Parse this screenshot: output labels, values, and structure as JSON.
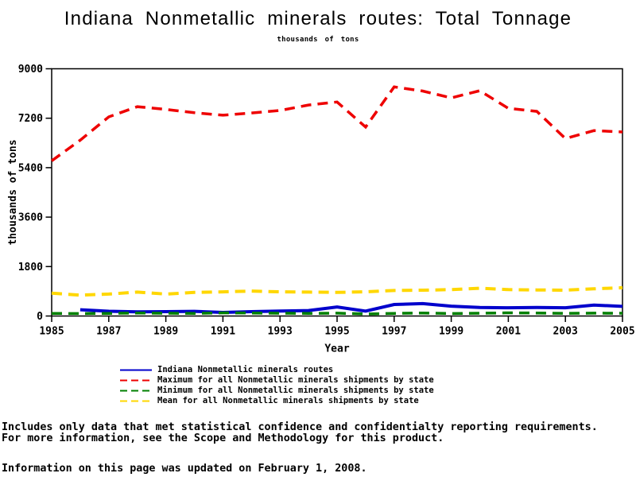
{
  "page": {
    "title": "Indiana Nonmetallic minerals routes: Total Tonnage",
    "subtitle": "thousands of tons",
    "footnote_line1": "Includes only data that met statistical confidence and confidentialty reporting requirements.",
    "footnote_line2": "For more information, see the Scope and Methodology for this product.",
    "updated_note": "Information on this page was updated on February 1, 2008."
  },
  "chart_data": {
    "type": "line",
    "title": "Indiana Nonmetallic minerals routes: Total Tonnage",
    "subtitle": "thousands of tons",
    "xlabel": "Year",
    "ylabel": "thousands of tons",
    "xlim": [
      1985,
      2005
    ],
    "ylim": [
      0,
      9000
    ],
    "x_ticks": [
      1985,
      1987,
      1989,
      1991,
      1993,
      1995,
      1997,
      1999,
      2001,
      2003,
      2005
    ],
    "y_ticks": [
      0,
      1800,
      3600,
      5400,
      7200,
      9000
    ],
    "grid": false,
    "legend_position": "bottom",
    "frame": true,
    "x": [
      1985,
      1986,
      1987,
      1988,
      1989,
      1990,
      1991,
      1992,
      1993,
      1994,
      1995,
      1996,
      1997,
      1998,
      1999,
      2000,
      2001,
      2002,
      2003,
      2004,
      2005
    ],
    "series": [
      {
        "name": "Indiana Nonmetallic minerals routes",
        "color": "#0000CC",
        "style": "solid",
        "width": 4,
        "values": [
          null,
          230,
          175,
          150,
          160,
          170,
          130,
          160,
          180,
          200,
          330,
          180,
          420,
          450,
          360,
          310,
          300,
          310,
          300,
          400,
          350
        ]
      },
      {
        "name": "Maximum for all Nonmetallic minerals shipments by state",
        "color": "#EE0000",
        "style": "dashed",
        "width": 3.5,
        "values": [
          5650,
          6400,
          7250,
          7620,
          7520,
          7400,
          7310,
          7390,
          7480,
          7680,
          7790,
          6880,
          8340,
          8190,
          7940,
          8200,
          7560,
          7450,
          6460,
          6750,
          6700
        ]
      },
      {
        "name": "Minimum for all Nonmetallic minerals shipments by state",
        "color": "#008000",
        "style": "dashed",
        "width": 3.5,
        "values": [
          95,
          90,
          95,
          110,
          100,
          95,
          115,
          110,
          100,
          95,
          105,
          75,
          95,
          110,
          90,
          100,
          115,
          110,
          95,
          105,
          100
        ]
      },
      {
        "name": "Mean for all Nonmetallic minerals shipments by state",
        "color": "#FFD700",
        "style": "dashed",
        "width": 4,
        "values": [
          830,
          760,
          800,
          870,
          800,
          860,
          880,
          910,
          880,
          870,
          860,
          880,
          930,
          940,
          960,
          1010,
          960,
          950,
          940,
          990,
          1030
        ]
      }
    ]
  }
}
